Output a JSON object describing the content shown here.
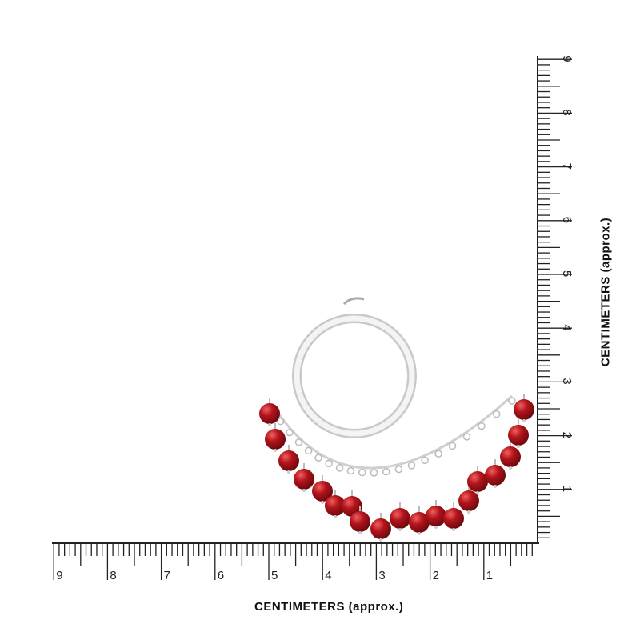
{
  "ruler_bottom": {
    "labels": [
      "9",
      "8",
      "7",
      "6",
      "5",
      "4",
      "3",
      "2",
      "1"
    ],
    "title": "CENTIMETERS (approx.)"
  },
  "ruler_right": {
    "labels": [
      "1",
      "2",
      "3",
      "4",
      "5",
      "6",
      "7",
      "8",
      "9"
    ],
    "title": "CENTIMETERS (approx.)"
  },
  "colors": {
    "bead": "#b3141b",
    "silver": "#d8d8d8",
    "ruler": "#222222"
  }
}
